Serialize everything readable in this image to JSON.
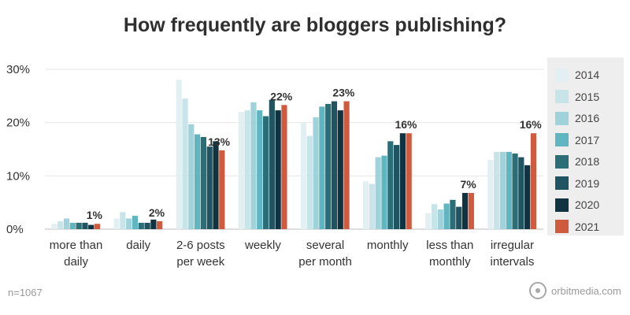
{
  "chart_data": {
    "type": "bar",
    "title": "How frequently are bloggers publishing?",
    "categories": [
      [
        "more than",
        "daily"
      ],
      [
        "daily"
      ],
      [
        "2-6 posts",
        "per week"
      ],
      [
        "weekly"
      ],
      [
        "several",
        "per month"
      ],
      [
        "monthly"
      ],
      [
        "less than",
        "monthly"
      ],
      [
        "irregular",
        "intervals"
      ]
    ],
    "ylim": [
      0,
      30
    ],
    "yticks": [
      0,
      10,
      20,
      30
    ],
    "ytick_labels": [
      "0%",
      "10%",
      "20%",
      "30%"
    ],
    "grid": true,
    "legend_position": "right",
    "series": [
      {
        "name": "2014",
        "color": "#e3f0f3",
        "values": [
          1,
          2,
          28,
          22,
          20,
          9,
          3,
          13
        ]
      },
      {
        "name": "2015",
        "color": "#c7e5e9",
        "values": [
          1.5,
          3.2,
          24.5,
          22.3,
          17.5,
          8.5,
          4.7,
          14.5
        ]
      },
      {
        "name": "2016",
        "color": "#9fd2da",
        "values": [
          2,
          2,
          19.7,
          23.8,
          21,
          13.5,
          3.7,
          14.5
        ]
      },
      {
        "name": "2017",
        "color": "#5fb5c0",
        "values": [
          1.2,
          2.5,
          17.8,
          22.3,
          23,
          13.8,
          4.8,
          14.5
        ]
      },
      {
        "name": "2018",
        "color": "#2c6e78",
        "values": [
          1.2,
          1.2,
          17.3,
          21.2,
          23.5,
          16.5,
          5.5,
          14.2
        ]
      },
      {
        "name": "2019",
        "color": "#1f5460",
        "values": [
          1.2,
          1.2,
          15.5,
          24.3,
          24,
          15.8,
          4.2,
          13.5
        ]
      },
      {
        "name": "2020",
        "color": "#0f3340",
        "values": [
          0.8,
          1.8,
          16.5,
          22.3,
          22.3,
          18,
          6.8,
          12
        ]
      },
      {
        "name": "2021",
        "color": "#cf5a3e",
        "values": [
          1,
          1.5,
          14.8,
          23.3,
          24,
          18,
          6.8,
          18
        ]
      }
    ],
    "annotations": [
      "1%",
      "2%",
      "13%",
      "22%",
      "23%",
      "16%",
      "7%",
      "16%"
    ]
  },
  "note": "n=1067",
  "brand": {
    "text": "orbitmedia.com",
    "icon": "orbit-logo-icon"
  }
}
